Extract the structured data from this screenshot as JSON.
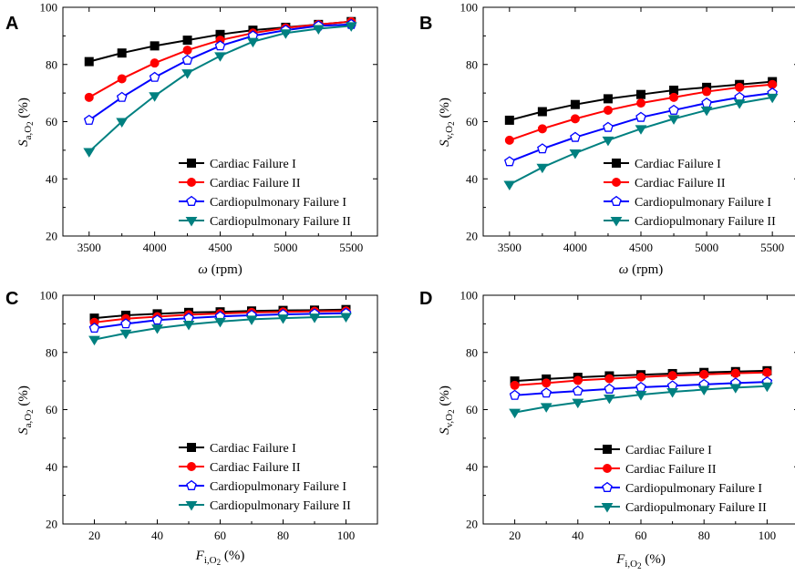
{
  "colors": {
    "cardiac_1": "#000000",
    "cardiac_2": "#ff0000",
    "cardiopulmonary_1": "#0000ff",
    "cardiopulmonary_2": "#008080"
  },
  "chart_data": [
    {
      "panel": "A",
      "type": "line",
      "xlabel": "ω (rpm)",
      "ylabel": "S a,O2 (%)",
      "xlim": [
        3300,
        5700
      ],
      "ylim": [
        20,
        100
      ],
      "xticks": [
        3500,
        4000,
        4500,
        5000,
        5500
      ],
      "yticks": [
        20,
        40,
        60,
        80,
        100
      ],
      "legend_position": "bottom-right",
      "x": [
        3500,
        3750,
        4000,
        4250,
        4500,
        4750,
        5000,
        5250,
        5500
      ],
      "series": [
        {
          "name": "Cardiac Failure I",
          "marker": "square",
          "color_key": "cardiac_1",
          "values": [
            81,
            84,
            86.5,
            88.5,
            90.5,
            92,
            93,
            94,
            95
          ]
        },
        {
          "name": "Cardiac Failure II",
          "marker": "circle",
          "color_key": "cardiac_2",
          "values": [
            68.5,
            75,
            80.5,
            85,
            88.5,
            91,
            92.8,
            94,
            95
          ]
        },
        {
          "name": "Cardiopulmonary Failure I",
          "marker": "pentagon",
          "color_key": "cardiopulmonary_1",
          "values": [
            60.5,
            68.5,
            75.5,
            81.5,
            86.5,
            90,
            92,
            93.5,
            94
          ]
        },
        {
          "name": "Cardiopulmonary Failure II",
          "marker": "triangle-down",
          "color_key": "cardiopulmonary_2",
          "values": [
            49.5,
            60,
            69,
            77,
            83,
            88,
            91,
            92.5,
            93.5
          ]
        }
      ]
    },
    {
      "panel": "B",
      "type": "line",
      "xlabel": "ω (rpm)",
      "ylabel": "S v,O2 (%)",
      "xlim": [
        3300,
        5700
      ],
      "ylim": [
        20,
        100
      ],
      "xticks": [
        3500,
        4000,
        4500,
        5000,
        5500
      ],
      "yticks": [
        20,
        40,
        60,
        80,
        100
      ],
      "legend_position": "bottom-right",
      "x": [
        3500,
        3750,
        4000,
        4250,
        4500,
        4750,
        5000,
        5250,
        5500
      ],
      "series": [
        {
          "name": "Cardiac Failure I",
          "marker": "square",
          "color_key": "cardiac_1",
          "values": [
            60.5,
            63.5,
            66,
            68,
            69.5,
            71,
            72,
            73,
            74
          ]
        },
        {
          "name": "Cardiac Failure II",
          "marker": "circle",
          "color_key": "cardiac_2",
          "values": [
            53.5,
            57.5,
            61,
            64,
            66.5,
            68.5,
            70.5,
            72,
            73
          ]
        },
        {
          "name": "Cardiopulmonary Failure I",
          "marker": "pentagon",
          "color_key": "cardiopulmonary_1",
          "values": [
            46,
            50.5,
            54.5,
            58,
            61.5,
            64,
            66.5,
            68.5,
            70
          ]
        },
        {
          "name": "Cardiopulmonary Failure II",
          "marker": "triangle-down",
          "color_key": "cardiopulmonary_2",
          "values": [
            38,
            44,
            49,
            53.5,
            57.5,
            61,
            64,
            66.5,
            68.5
          ]
        }
      ]
    },
    {
      "panel": "C",
      "type": "line",
      "xlabel": "F i,O2 (%)",
      "ylabel": "S a,O2 (%)",
      "xlim": [
        10,
        110
      ],
      "ylim": [
        20,
        100
      ],
      "xticks": [
        20,
        40,
        60,
        80,
        100
      ],
      "yticks": [
        20,
        40,
        60,
        80,
        100
      ],
      "legend_position": "bottom-right",
      "x": [
        20,
        30,
        40,
        50,
        60,
        70,
        80,
        90,
        100
      ],
      "series": [
        {
          "name": "Cardiac Failure I",
          "marker": "square",
          "color_key": "cardiac_1",
          "values": [
            92,
            93,
            93.5,
            94,
            94.2,
            94.5,
            94.7,
            94.8,
            95
          ]
        },
        {
          "name": "Cardiac Failure II",
          "marker": "circle",
          "color_key": "cardiac_2",
          "values": [
            90.5,
            91.8,
            92.5,
            93.2,
            93.6,
            94,
            94.2,
            94.4,
            94.5
          ]
        },
        {
          "name": "Cardiopulmonary Failure I",
          "marker": "pentagon",
          "color_key": "cardiopulmonary_1",
          "values": [
            88.5,
            90,
            91.3,
            92,
            92.6,
            93,
            93.3,
            93.5,
            93.7
          ]
        },
        {
          "name": "Cardiopulmonary Failure II",
          "marker": "triangle-down",
          "color_key": "cardiopulmonary_2",
          "values": [
            84.5,
            86.7,
            88.5,
            89.8,
            90.8,
            91.6,
            92,
            92.3,
            92.5
          ]
        }
      ]
    },
    {
      "panel": "D",
      "type": "line",
      "xlabel": "F i,O2 (%)",
      "ylabel": "S v,O2 (%)",
      "xlim": [
        10,
        110
      ],
      "ylim": [
        20,
        100
      ],
      "xticks": [
        20,
        40,
        60,
        80,
        100
      ],
      "yticks": [
        20,
        40,
        60,
        80,
        100
      ],
      "legend_position": "bottom-right",
      "x": [
        20,
        30,
        40,
        50,
        60,
        70,
        80,
        90,
        100
      ],
      "series": [
        {
          "name": "Cardiac Failure I",
          "marker": "square",
          "color_key": "cardiac_1",
          "values": [
            70,
            70.7,
            71.3,
            71.8,
            72.2,
            72.6,
            73,
            73.3,
            73.6
          ]
        },
        {
          "name": "Cardiac Failure II",
          "marker": "circle",
          "color_key": "cardiac_2",
          "values": [
            68.5,
            69.3,
            70.2,
            70.8,
            71.4,
            71.9,
            72.3,
            72.7,
            73
          ]
        },
        {
          "name": "Cardiopulmonary Failure I",
          "marker": "pentagon",
          "color_key": "cardiopulmonary_1",
          "values": [
            65,
            65.8,
            66.5,
            67.2,
            67.8,
            68.3,
            68.8,
            69.3,
            69.7
          ]
        },
        {
          "name": "Cardiopulmonary Failure II",
          "marker": "triangle-down",
          "color_key": "cardiopulmonary_2",
          "values": [
            59,
            61,
            62.5,
            64,
            65.2,
            66.2,
            67,
            67.7,
            68.2
          ]
        }
      ]
    }
  ]
}
